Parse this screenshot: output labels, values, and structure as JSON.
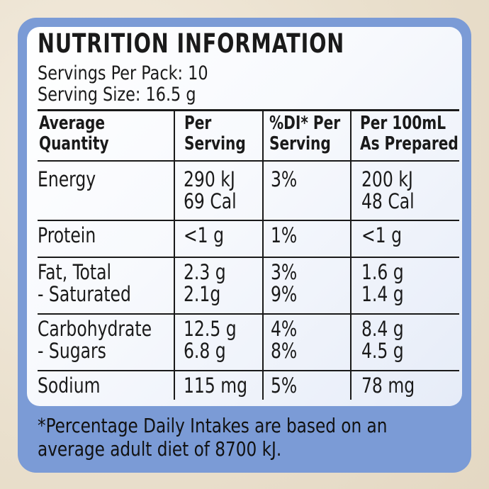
{
  "title": "NUTRITION INFORMATION",
  "servings_per_pack": "Servings Per Pack: 10",
  "serving_size": "Serving Size: 16.5 g",
  "headers": [
    "Average\nQuantity",
    "Per\nServing",
    "%DI* Per\nServing",
    "Per 100mL\nAs Prepared"
  ],
  "rows": [
    {
      "name": "Energy",
      "per_serving": "290 kJ\n69 Cal",
      "di": "3%",
      "per_100ml": "200 kJ\n48 Cal"
    },
    {
      "name": "Protein",
      "per_serving": "<1 g",
      "di": "1%",
      "per_100ml": "<1 g"
    },
    {
      "name": "Fat, Total\n   - Saturated",
      "per_serving": "2.3 g\n2.1g",
      "di": "3%\n9%",
      "per_100ml": "1.6 g\n1.4 g"
    },
    {
      "name": "Carbohydrate\n   - Sugars",
      "per_serving": "12.5 g\n6.8 g",
      "di": "4%\n8%",
      "per_100ml": "8.4 g\n4.5 g"
    },
    {
      "name": "Sodium",
      "per_serving": "115 mg",
      "di": "5%",
      "per_100ml": "78 mg"
    }
  ],
  "footnote": "*Percentage Daily Intakes are based on an average adult diet of 8700 kJ.",
  "colors": {
    "panel": "#7b9bd6",
    "card": "#ffffff",
    "text": "#1a1a1a"
  }
}
